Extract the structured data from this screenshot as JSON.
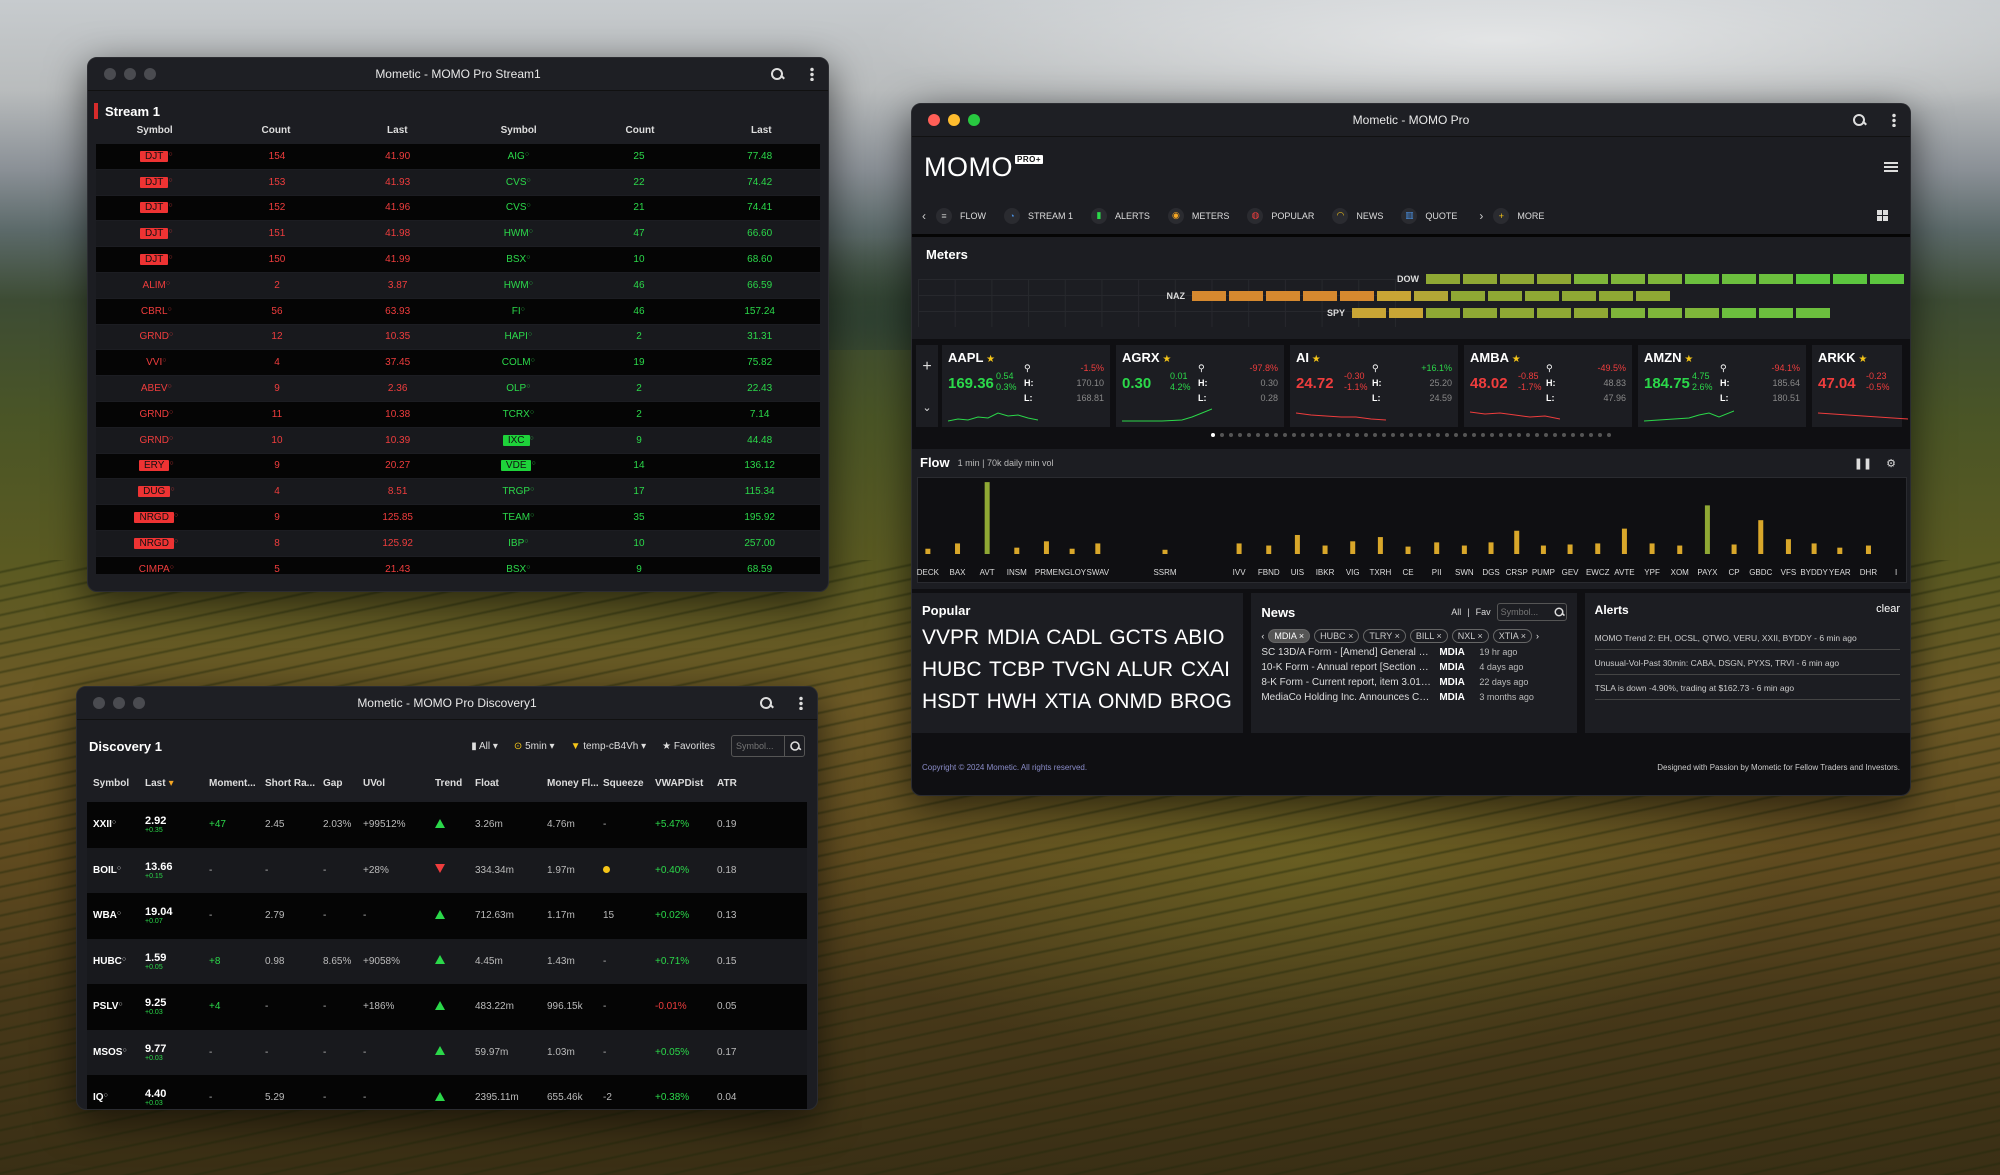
{
  "stream_window": {
    "title": "Mometic - MOMO Pro Stream1",
    "panel_title": "Stream 1",
    "headers": [
      "Symbol",
      "Count",
      "Last",
      "Symbol",
      "Count",
      "Last"
    ],
    "rows": [
      {
        "ls": "DJT",
        "lc": "154",
        "ll": "41.90",
        "lchip": true,
        "rs": "AIG",
        "rc": "25",
        "rl": "77.48",
        "rchip": false
      },
      {
        "ls": "DJT",
        "lc": "153",
        "ll": "41.93",
        "lchip": true,
        "rs": "CVS",
        "rc": "22",
        "rl": "74.42",
        "rchip": false
      },
      {
        "ls": "DJT",
        "lc": "152",
        "ll": "41.96",
        "lchip": true,
        "rs": "CVS",
        "rc": "21",
        "rl": "74.41",
        "rchip": false
      },
      {
        "ls": "DJT",
        "lc": "151",
        "ll": "41.98",
        "lchip": true,
        "rs": "HWM",
        "rc": "47",
        "rl": "66.60",
        "rchip": false
      },
      {
        "ls": "DJT",
        "lc": "150",
        "ll": "41.99",
        "lchip": true,
        "rs": "BSX",
        "rc": "10",
        "rl": "68.60",
        "rchip": false
      },
      {
        "ls": "ALIM",
        "lc": "2",
        "ll": "3.87",
        "lchip": false,
        "rs": "HWM",
        "rc": "46",
        "rl": "66.59",
        "rchip": false
      },
      {
        "ls": "CBRL",
        "lc": "56",
        "ll": "63.93",
        "lchip": false,
        "rs": "FI",
        "rc": "46",
        "rl": "157.24",
        "rchip": false
      },
      {
        "ls": "GRND",
        "lc": "12",
        "ll": "10.35",
        "lchip": false,
        "rs": "HAPI",
        "rc": "2",
        "rl": "31.31",
        "rchip": false
      },
      {
        "ls": "VVI",
        "lc": "4",
        "ll": "37.45",
        "lchip": false,
        "rs": "COLM",
        "rc": "19",
        "rl": "75.82",
        "rchip": false
      },
      {
        "ls": "ABEV",
        "lc": "9",
        "ll": "2.36",
        "lchip": false,
        "rs": "OLP",
        "rc": "2",
        "rl": "22.43",
        "rchip": false
      },
      {
        "ls": "GRND",
        "lc": "11",
        "ll": "10.38",
        "lchip": false,
        "rs": "TCRX",
        "rc": "2",
        "rl": "7.14",
        "rchip": false
      },
      {
        "ls": "GRND",
        "lc": "10",
        "ll": "10.39",
        "lchip": false,
        "rs": "IXC",
        "rc": "9",
        "rl": "44.48",
        "rchip": true
      },
      {
        "ls": "ERY",
        "lc": "9",
        "ll": "20.27",
        "lchip": true,
        "rs": "VDE",
        "rc": "14",
        "rl": "136.12",
        "rchip": true
      },
      {
        "ls": "DUG",
        "lc": "4",
        "ll": "8.51",
        "lchip": true,
        "rs": "TRGP",
        "rc": "17",
        "rl": "115.34",
        "rchip": false
      },
      {
        "ls": "NRGD",
        "lc": "9",
        "ll": "125.85",
        "lchip": true,
        "rs": "TEAM",
        "rc": "35",
        "rl": "195.92",
        "rchip": false
      },
      {
        "ls": "NRGD",
        "lc": "8",
        "ll": "125.92",
        "lchip": true,
        "rs": "IBP",
        "rc": "10",
        "rl": "257.00",
        "rchip": false
      },
      {
        "ls": "CIMPA",
        "lc": "5",
        "ll": "21.43",
        "lchip": false,
        "rs": "BSX",
        "rc": "9",
        "rl": "68.59",
        "rchip": false
      }
    ]
  },
  "discovery_window": {
    "title": "Mometic - MOMO Pro Discovery1",
    "panel_title": "Discovery 1",
    "filters": {
      "all": "All",
      "interval": "5min",
      "template": "temp-cB4Vh",
      "favorites": "Favorites",
      "search_placeholder": "Symbol..."
    },
    "headers": [
      "Symbol",
      "Last",
      "Moment...",
      "Short Ra...",
      "Gap",
      "UVol",
      "Trend",
      "Float",
      "Money Fl...",
      "Squeeze",
      "VWAPDist",
      "ATR"
    ],
    "rows": [
      {
        "sym": "XXII",
        "last": "2.92",
        "chg": "+0.35",
        "mom": "+47",
        "short": "2.45",
        "gap": "2.03%",
        "uvol": "+99512%",
        "trend": "up",
        "float": "3.26m",
        "money": "4.76m",
        "squeeze": "-",
        "vwap": "+5.47%",
        "vwap_neg": false,
        "atr": "0.19"
      },
      {
        "sym": "BOIL",
        "last": "13.66",
        "chg": "+0.15",
        "mom": "-",
        "short": "-",
        "gap": "-",
        "uvol": "+28%",
        "trend": "down",
        "float": "334.34m",
        "money": "1.97m",
        "squeeze": "dot",
        "vwap": "+0.40%",
        "vwap_neg": false,
        "atr": "0.18"
      },
      {
        "sym": "WBA",
        "last": "19.04",
        "chg": "+0.07",
        "mom": "-",
        "short": "2.79",
        "gap": "-",
        "uvol": "-",
        "trend": "up",
        "float": "712.63m",
        "money": "1.17m",
        "squeeze": "15",
        "vwap": "+0.02%",
        "vwap_neg": false,
        "atr": "0.13"
      },
      {
        "sym": "HUBC",
        "last": "1.59",
        "chg": "+0.05",
        "mom": "+8",
        "short": "0.98",
        "gap": "8.65%",
        "uvol": "+9058%",
        "trend": "up",
        "float": "4.45m",
        "money": "1.43m",
        "squeeze": "-",
        "vwap": "+0.71%",
        "vwap_neg": false,
        "atr": "0.15"
      },
      {
        "sym": "PSLV",
        "last": "9.25",
        "chg": "+0.03",
        "mom": "+4",
        "short": "-",
        "gap": "-",
        "uvol": "+186%",
        "trend": "up",
        "float": "483.22m",
        "money": "996.15k",
        "squeeze": "-",
        "vwap": "-0.01%",
        "vwap_neg": true,
        "atr": "0.05"
      },
      {
        "sym": "MSOS",
        "last": "9.77",
        "chg": "+0.03",
        "mom": "-",
        "short": "-",
        "gap": "-",
        "uvol": "-",
        "trend": "up",
        "float": "59.97m",
        "money": "1.03m",
        "squeeze": "-",
        "vwap": "+0.05%",
        "vwap_neg": false,
        "atr": "0.17"
      },
      {
        "sym": "IQ",
        "last": "4.40",
        "chg": "+0.03",
        "mom": "-",
        "short": "5.29",
        "gap": "-",
        "uvol": "-",
        "trend": "up",
        "float": "2395.11m",
        "money": "655.46k",
        "squeeze": "-2",
        "vwap": "+0.38%",
        "vwap_neg": false,
        "atr": "0.04"
      }
    ]
  },
  "main_window": {
    "title": "Mometic - MOMO Pro",
    "logo": "MOMO",
    "logo_badge": "PRO+",
    "nav": [
      {
        "label": "FLOW",
        "icon": "≡",
        "color": "#bbb"
      },
      {
        "label": "STREAM 1",
        "icon": "◔",
        "color": "#4a90e2"
      },
      {
        "label": "ALERTS",
        "icon": "▮",
        "color": "#2bd84a"
      },
      {
        "label": "METERS",
        "icon": "◉",
        "color": "#f5a623"
      },
      {
        "label": "POPULAR",
        "icon": "◍",
        "color": "#ef3d3d"
      },
      {
        "label": "NEWS",
        "icon": "◠",
        "color": "#f5c518"
      },
      {
        "label": "QUOTE",
        "icon": "▥",
        "color": "#4a90e2"
      },
      {
        "label": "MORE",
        "icon": "+",
        "color": "#f5c518"
      }
    ],
    "meters": {
      "title": "Meters",
      "rows": [
        {
          "label": "DOW",
          "segments": 13,
          "colors": [
            "#8fa834",
            "#8fa834",
            "#8fa834",
            "#8fa834",
            "#7fb63a",
            "#7fb63a",
            "#7fb63a",
            "#6cbf3e",
            "#6cbf3e",
            "#6cbf3e",
            "#5cc63f",
            "#5cc63f",
            "#5cc63f"
          ]
        },
        {
          "label": "NAZ",
          "segments": 14,
          "colors": [
            "#d6892f",
            "#d6892f",
            "#d6892f",
            "#d6892f",
            "#d6892f",
            "#c9a535",
            "#b3a736",
            "#8fa834",
            "#8fa834",
            "#8fa834",
            "#8fa834",
            "#8fa834",
            "#8fa834",
            "#8fa834"
          ]
        },
        {
          "label": "SPY",
          "segments": 14,
          "colors": [
            "#c9a535",
            "#c9a535",
            "#8fa834",
            "#8fa834",
            "#8fa834",
            "#8fa834",
            "#8fa834",
            "#7fb63a",
            "#7fb63a",
            "#7fb63a",
            "#6cbf3e",
            "#6cbf3e",
            "#6cbf3e",
            "#6cbf3e"
          ]
        }
      ]
    },
    "quotes": [
      {
        "sym": "AAPL",
        "price": "169.36",
        "ch1": "0.54",
        "ch2": "0.3%",
        "pos": true,
        "pct": "-1.5%",
        "pct_pos": false,
        "h": "170.10",
        "l": "168.81"
      },
      {
        "sym": "AGRX",
        "price": "0.30",
        "ch1": "0.01",
        "ch2": "4.2%",
        "pos": true,
        "pct": "-97.8%",
        "pct_pos": false,
        "h": "0.30",
        "l": "0.28"
      },
      {
        "sym": "AI",
        "price": "24.72",
        "ch1": "-0.30",
        "ch2": "-1.1%",
        "pos": false,
        "pct": "+16.1%",
        "pct_pos": true,
        "h": "25.20",
        "l": "24.59"
      },
      {
        "sym": "AMBA",
        "price": "48.02",
        "ch1": "-0.85",
        "ch2": "-1.7%",
        "pos": false,
        "pct": "-49.5%",
        "pct_pos": false,
        "h": "48.83",
        "l": "47.96"
      },
      {
        "sym": "AMZN",
        "price": "184.75",
        "ch1": "4.75",
        "ch2": "2.6%",
        "pos": true,
        "pct": "-94.1%",
        "pct_pos": false,
        "h": "185.64",
        "l": "180.51"
      },
      {
        "sym": "ARKK",
        "price": "47.04",
        "ch1": "-0.23",
        "ch2": "-0.5%",
        "pos": false,
        "pct": "",
        "pct_pos": false,
        "h": "",
        "l": ""
      }
    ],
    "hl_labels": {
      "h": "H:",
      "l": "L:"
    },
    "page_dots": 45,
    "flow": {
      "title": "Flow",
      "subtitle": "1 min | 70k daily min vol",
      "bars": [
        {
          "label": "DECK",
          "value": 5,
          "color": "#d9a72a"
        },
        {
          "label": "BAX",
          "value": 10,
          "color": "#d9a72a"
        },
        {
          "label": "AVT",
          "value": 68,
          "color": "#8fa834"
        },
        {
          "label": "INSM",
          "value": 6,
          "color": "#d9a72a"
        },
        {
          "label": "PRME",
          "value": 12,
          "color": "#d9a72a"
        },
        {
          "label": "NGLOY",
          "value": 5,
          "color": "#d9a72a"
        },
        {
          "label": "SWAV",
          "value": 10,
          "color": "#d9a72a"
        },
        {
          "label": "SSRM",
          "value": 4,
          "color": "#d9a72a"
        },
        {
          "label": "IVV",
          "value": 10,
          "color": "#d9a72a"
        },
        {
          "label": "FBND",
          "value": 8,
          "color": "#d9a72a"
        },
        {
          "label": "UIS",
          "value": 18,
          "color": "#d9a72a"
        },
        {
          "label": "IBKR",
          "value": 8,
          "color": "#d9a72a"
        },
        {
          "label": "VIG",
          "value": 12,
          "color": "#d9a72a"
        },
        {
          "label": "TXRH",
          "value": 16,
          "color": "#d9a72a"
        },
        {
          "label": "CE",
          "value": 7,
          "color": "#d9a72a"
        },
        {
          "label": "PII",
          "value": 11,
          "color": "#d9a72a"
        },
        {
          "label": "SWN",
          "value": 8,
          "color": "#d9a72a"
        },
        {
          "label": "DGS",
          "value": 11,
          "color": "#d9a72a"
        },
        {
          "label": "CRSP",
          "value": 22,
          "color": "#d9a72a"
        },
        {
          "label": "PUMP",
          "value": 8,
          "color": "#d9a72a"
        },
        {
          "label": "GEV",
          "value": 9,
          "color": "#d9a72a"
        },
        {
          "label": "EWCZ",
          "value": 10,
          "color": "#d9a72a"
        },
        {
          "label": "AVTE",
          "value": 24,
          "color": "#d9a72a"
        },
        {
          "label": "YPF",
          "value": 10,
          "color": "#d9a72a"
        },
        {
          "label": "XOM",
          "value": 8,
          "color": "#d9a72a"
        },
        {
          "label": "PAYX",
          "value": 46,
          "color": "#8fa834"
        },
        {
          "label": "CP",
          "value": 9,
          "color": "#d9a72a"
        },
        {
          "label": "GBDC",
          "value": 32,
          "color": "#d9a72a"
        },
        {
          "label": "VFS",
          "value": 14,
          "color": "#d9a72a"
        },
        {
          "label": "BYDDY",
          "value": 10,
          "color": "#d9a72a"
        },
        {
          "label": "YEAR",
          "value": 6,
          "color": "#d9a72a"
        },
        {
          "label": "DHR",
          "value": 8,
          "color": "#d9a72a"
        },
        {
          "label": "I",
          "value": 0,
          "color": "#d9a72a"
        }
      ],
      "label_x": [
        1,
        4,
        7,
        10,
        13,
        15.6,
        18.2,
        25,
        32.5,
        35.5,
        38.4,
        41.2,
        44,
        46.8,
        49.6,
        52.5,
        55.3,
        58,
        60.6,
        63.3,
        66,
        68.8,
        71.5,
        74.3,
        77.1,
        79.9,
        82.6,
        85.3,
        88.1,
        90.7,
        93.3,
        96.2,
        99
      ]
    },
    "popular": {
      "title": "Popular",
      "text": "VVPR MDIA CADL GCTS ABIO HUBC TCBP TVGN ALUR CXAI HSDT HWH XTIA ONMD BROG"
    },
    "news": {
      "title": "News",
      "all": "All",
      "fav": "Fav",
      "search_placeholder": "Symbol...",
      "tags": [
        "MDIA",
        "HUBC",
        "TLRY",
        "BILL",
        "NXL",
        "XTIA"
      ],
      "items": [
        {
          "text": "SC 13D/A Form - [Amend] General statem...",
          "sym": "MDIA",
          "date": "19 hr ago"
        },
        {
          "text": "10-K Form - Annual report [Section 13 a...",
          "sym": "MDIA",
          "date": "4 days ago"
        },
        {
          "text": "8-K Form - Current report, item 3.01 - ...",
          "sym": "MDIA",
          "date": "22 days ago"
        },
        {
          "text": "MediaCo Holding Inc. Announces Chr...",
          "sym": "MDIA",
          "date": "3 months ago"
        }
      ]
    },
    "alerts": {
      "title": "Alerts",
      "clear": "clear",
      "items": [
        "MOMO Trend 2: EH, OCSL, QTWO, VERU, XXII, BYDDY - 6 min ago",
        "Unusual-Vol-Past 30min: CABA, DSGN, PYXS, TRVI - 6 min ago",
        "TSLA is down -4.90%, trading at $162.73 - 6 min ago"
      ]
    },
    "footer": {
      "copyright": "Copyright © 2024 Mometic. All rights reserved.",
      "tagline": "Designed with Passion by Mometic for Fellow Traders and Investors."
    }
  }
}
